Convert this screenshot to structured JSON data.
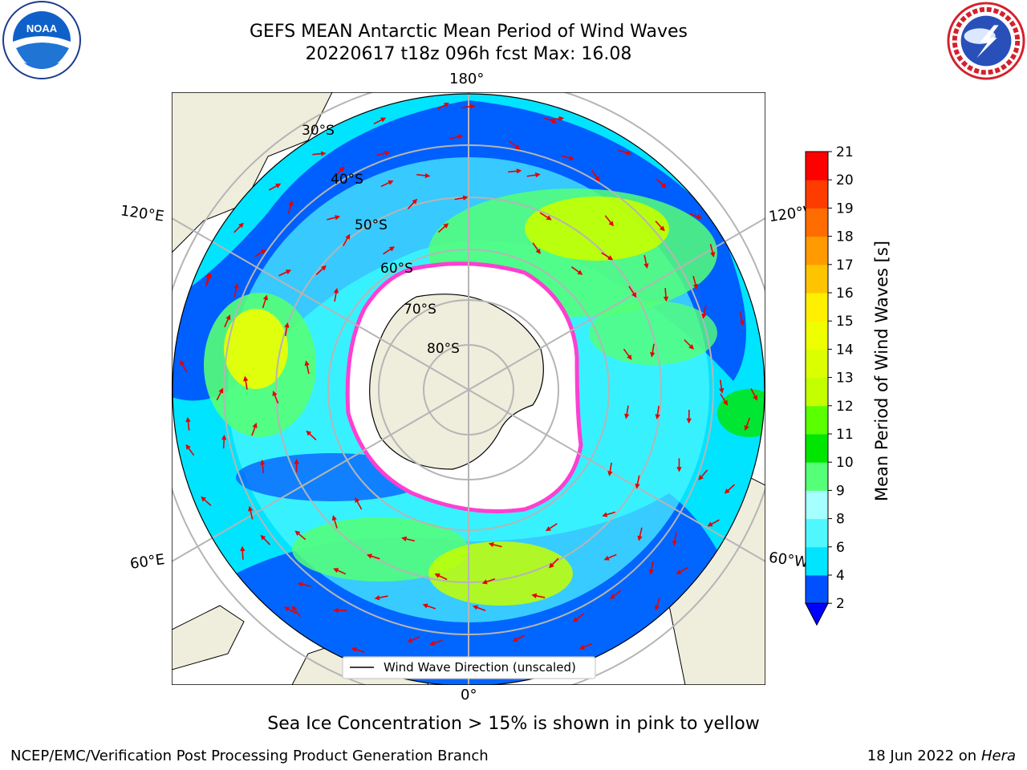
{
  "header": {
    "title_line1": "GEFS MEAN Antarctic Mean Period of Wind Waves",
    "title_line2": "20220617 t18z 096h fcst   Max: 16.08"
  },
  "logos": {
    "left": {
      "icon": "noaa-logo",
      "text": "NOAA"
    },
    "right": {
      "icon": "national-weather-service-logo"
    }
  },
  "map": {
    "projection": "south-polar-stereographic",
    "longitude_labels": {
      "top": "180°",
      "left": "120°E",
      "right": "120°W",
      "bottom_left": "60°E",
      "bottom_right": "60°W",
      "bottom": "0°"
    },
    "latitude_labels": [
      "30°S",
      "40°S",
      "50°S",
      "60°S",
      "70°S",
      "80°S"
    ],
    "legend": "Wind Wave Direction (unscaled)",
    "colors": {
      "land": "#efeddc",
      "ice_edge": "#ff3fd2",
      "grid": "#b5b5b5"
    }
  },
  "colorbar": {
    "label": "Mean Period of Wind Waves [s]",
    "ticks": [
      "2",
      "4",
      "6",
      "8",
      "9",
      "10",
      "11",
      "12",
      "13",
      "14",
      "15",
      "16",
      "17",
      "18",
      "19",
      "20",
      "21"
    ],
    "colors": [
      "#0050ff",
      "#00e4ff",
      "#50f7ff",
      "#a5ffff",
      "#55ff77",
      "#00e600",
      "#5aff00",
      "#c4ff00",
      "#dcff00",
      "#f0ff00",
      "#ffef00",
      "#ffc400",
      "#ff9a00",
      "#ff6d00",
      "#ff3c00",
      "#ff0000"
    ],
    "extend_color": "#0000ff"
  },
  "footer": {
    "note": "Sea Ice Concentration > 15% is shown in pink to yellow",
    "credit": "NCEP/EMC/Verification Post Processing Product Generation Branch",
    "date": "18 Jun 2022 on",
    "host": "Hera"
  }
}
